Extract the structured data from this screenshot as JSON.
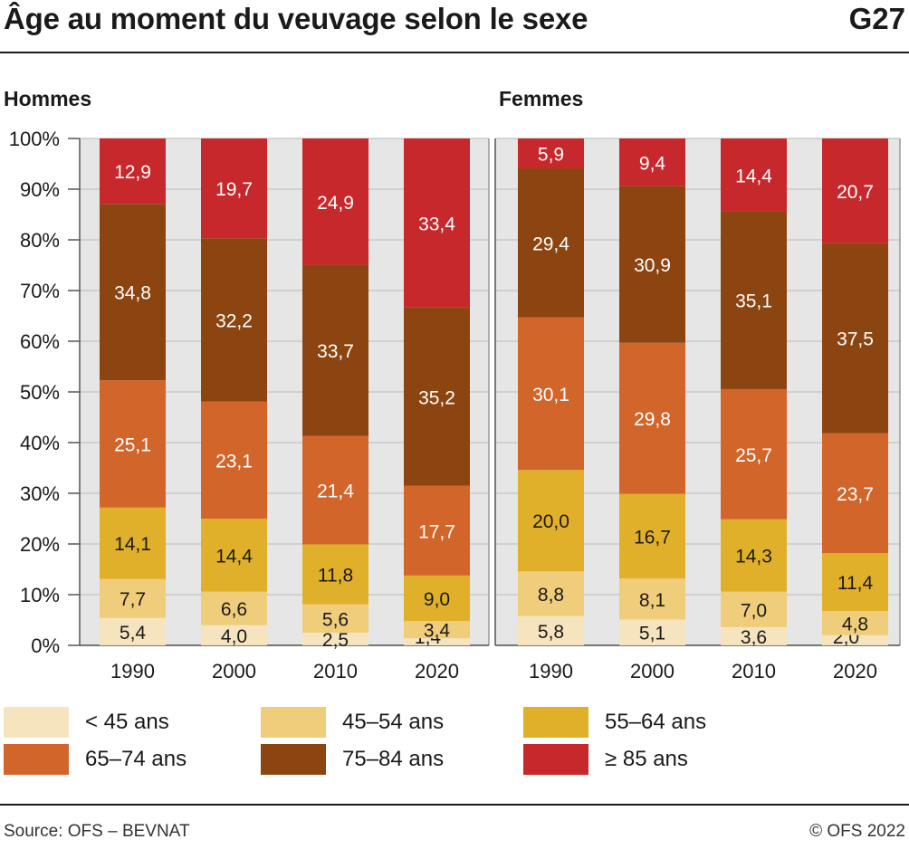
{
  "header": {
    "title": "Âge au moment du veuvage selon le sexe",
    "code": "G27"
  },
  "footer": {
    "source": "Source: OFS – BEVNAT",
    "copyright": "© OFS 2022"
  },
  "colors": {
    "lt45": "#f6e4bf",
    "a45_54": "#efcd7a",
    "a55_64": "#e1b02a",
    "a65_74": "#d1652a",
    "a75_84": "#8c4511",
    "ge85": "#c6282b",
    "grid": "#c8c8c8",
    "panel_bg": "#e6e6e6"
  },
  "legend": [
    {
      "label": "< 45 ans",
      "color_key": "lt45"
    },
    {
      "label": "45–54 ans",
      "color_key": "a45_54"
    },
    {
      "label": "55–64 ans",
      "color_key": "a55_64"
    },
    {
      "label": "65–74 ans",
      "color_key": "a65_74"
    },
    {
      "label": "75–84 ans",
      "color_key": "a75_84"
    },
    {
      "label": "≥ 85 ans",
      "color_key": "ge85"
    }
  ],
  "chart_data": [
    {
      "type": "bar",
      "stacked": true,
      "title": "Hommes",
      "categories": [
        "1990",
        "2000",
        "2010",
        "2020"
      ],
      "ylim": [
        0,
        100
      ],
      "yticks": [
        "0%",
        "10%",
        "20%",
        "30%",
        "40%",
        "50%",
        "60%",
        "70%",
        "80%",
        "90%",
        "100%"
      ],
      "grid": true,
      "series": [
        {
          "name": "< 45 ans",
          "values": [
            5.4,
            4.0,
            2.5,
            1.4
          ],
          "labels": [
            "5,4",
            "4,0",
            "2,5",
            "1,4"
          ]
        },
        {
          "name": "45–54 ans",
          "values": [
            7.7,
            6.6,
            5.6,
            3.4
          ],
          "labels": [
            "7,7",
            "6,6",
            "5,6",
            "3,4"
          ]
        },
        {
          "name": "55–64 ans",
          "values": [
            14.1,
            14.4,
            11.8,
            9.0
          ],
          "labels": [
            "14,1",
            "14,4",
            "11,8",
            "9,0"
          ]
        },
        {
          "name": "65–74 ans",
          "values": [
            25.1,
            23.1,
            21.4,
            17.7
          ],
          "labels": [
            "25,1",
            "23,1",
            "21,4",
            "17,7"
          ]
        },
        {
          "name": "75–84 ans",
          "values": [
            34.8,
            32.2,
            33.7,
            35.2
          ],
          "labels": [
            "34,8",
            "32,2",
            "33,7",
            "35,2"
          ]
        },
        {
          "name": "≥ 85 ans",
          "values": [
            12.9,
            19.7,
            24.9,
            33.4
          ],
          "labels": [
            "12,9",
            "19,7",
            "24,9",
            "33,4"
          ]
        }
      ]
    },
    {
      "type": "bar",
      "stacked": true,
      "title": "Femmes",
      "categories": [
        "1990",
        "2000",
        "2010",
        "2020"
      ],
      "ylim": [
        0,
        100
      ],
      "grid": true,
      "series": [
        {
          "name": "< 45 ans",
          "values": [
            5.8,
            5.1,
            3.6,
            2.0
          ],
          "labels": [
            "5,8",
            "5,1",
            "3,6",
            "2,0"
          ]
        },
        {
          "name": "45–54 ans",
          "values": [
            8.8,
            8.1,
            7.0,
            4.8
          ],
          "labels": [
            "8,8",
            "8,1",
            "7,0",
            "4,8"
          ]
        },
        {
          "name": "55–64 ans",
          "values": [
            20.0,
            16.7,
            14.3,
            11.4
          ],
          "labels": [
            "20,0",
            "16,7",
            "14,3",
            "11,4"
          ]
        },
        {
          "name": "65–74 ans",
          "values": [
            30.1,
            29.8,
            25.7,
            23.7
          ],
          "labels": [
            "30,1",
            "29,8",
            "25,7",
            "23,7"
          ]
        },
        {
          "name": "75–84 ans",
          "values": [
            29.4,
            30.9,
            35.1,
            37.5
          ],
          "labels": [
            "29,4",
            "30,9",
            "35,1",
            "37,5"
          ]
        },
        {
          "name": "≥ 85 ans",
          "values": [
            5.9,
            9.4,
            14.4,
            20.7
          ],
          "labels": [
            "5,9",
            "9,4",
            "14,4",
            "20,7"
          ]
        }
      ]
    }
  ]
}
